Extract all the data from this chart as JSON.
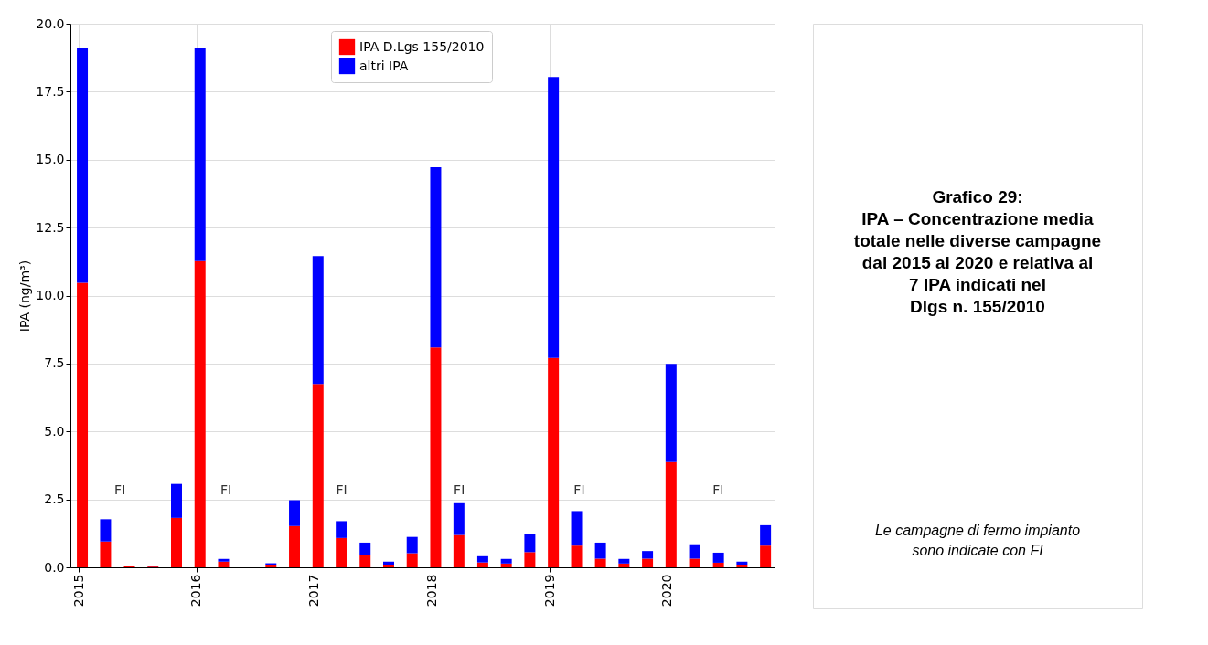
{
  "chart_data": {
    "type": "bar",
    "stacked": true,
    "title": "Grafico 29:\nIPA – Concentrazione media\ntotale nelle diverse campagne\ndal 2015 al 2020 e relativa ai\n7 IPA indicati nel\nDlgs n. 155/2010",
    "ylabel": "IPA (ng/m³)",
    "x": [
      "2015-01-12",
      "2015-03-25",
      "2015-06-07",
      "2015-08-19",
      "2015-10-31",
      "2016-01-12",
      "2016-03-25",
      "2016-06-07",
      "2016-08-19",
      "2016-10-31",
      "2017-01-12",
      "2017-03-25",
      "2017-06-07",
      "2017-08-19",
      "2017-10-31",
      "2018-01-12",
      "2018-03-25",
      "2018-06-07",
      "2018-08-19",
      "2018-10-31",
      "2019-01-12",
      "2019-03-25",
      "2019-06-07",
      "2019-08-19",
      "2019-10-31",
      "2020-01-12",
      "2020-03-25",
      "2020-06-07",
      "2020-08-19",
      "2020-10-31"
    ],
    "series": [
      {
        "name": "IPA D.Lgs 155/2010",
        "color": "#ff0000",
        "values": [
          10.47,
          0.95,
          0.03,
          0.03,
          1.82,
          11.27,
          0.21,
          null,
          0.1,
          1.52,
          6.75,
          1.08,
          0.46,
          0.1,
          0.52,
          8.09,
          1.19,
          0.18,
          0.14,
          0.56,
          7.71,
          0.8,
          0.32,
          0.14,
          0.32,
          3.87,
          0.32,
          0.17,
          0.1,
          0.8
        ]
      },
      {
        "name": "altri IPA",
        "color": "#0000ff",
        "values": [
          8.66,
          0.82,
          0.03,
          0.03,
          1.25,
          7.82,
          0.1,
          null,
          0.05,
          0.95,
          4.7,
          0.62,
          0.45,
          0.11,
          0.6,
          6.63,
          1.17,
          0.23,
          0.17,
          0.66,
          10.33,
          1.27,
          0.59,
          0.17,
          0.28,
          3.62,
          0.53,
          0.37,
          0.11,
          0.75
        ]
      }
    ],
    "xlim": [
      "2014-12-06",
      "2020-11-28"
    ],
    "xticks": [
      "2015",
      "2016",
      "2017",
      "2018",
      "2019",
      "2020"
    ],
    "ylim": [
      0,
      20
    ],
    "yticks": [
      {
        "value": 0,
        "label": "0.0"
      },
      {
        "value": 2.5,
        "label": "2.5"
      },
      {
        "value": 5,
        "label": "5.0"
      },
      {
        "value": 7.5,
        "label": "7.5"
      },
      {
        "value": 10,
        "label": "10.0"
      },
      {
        "value": 12.5,
        "label": "12.5"
      },
      {
        "value": 15,
        "label": "15.0"
      },
      {
        "value": 17.5,
        "label": "17.5"
      },
      {
        "value": 20,
        "label": "20.0"
      }
    ],
    "grid": true,
    "legend": "top",
    "annotations": [
      "FI",
      "FI",
      "FI",
      "FI",
      "FI",
      "FI",
      "Le campagne di fermo impianto\nsono indicate con FI"
    ]
  }
}
